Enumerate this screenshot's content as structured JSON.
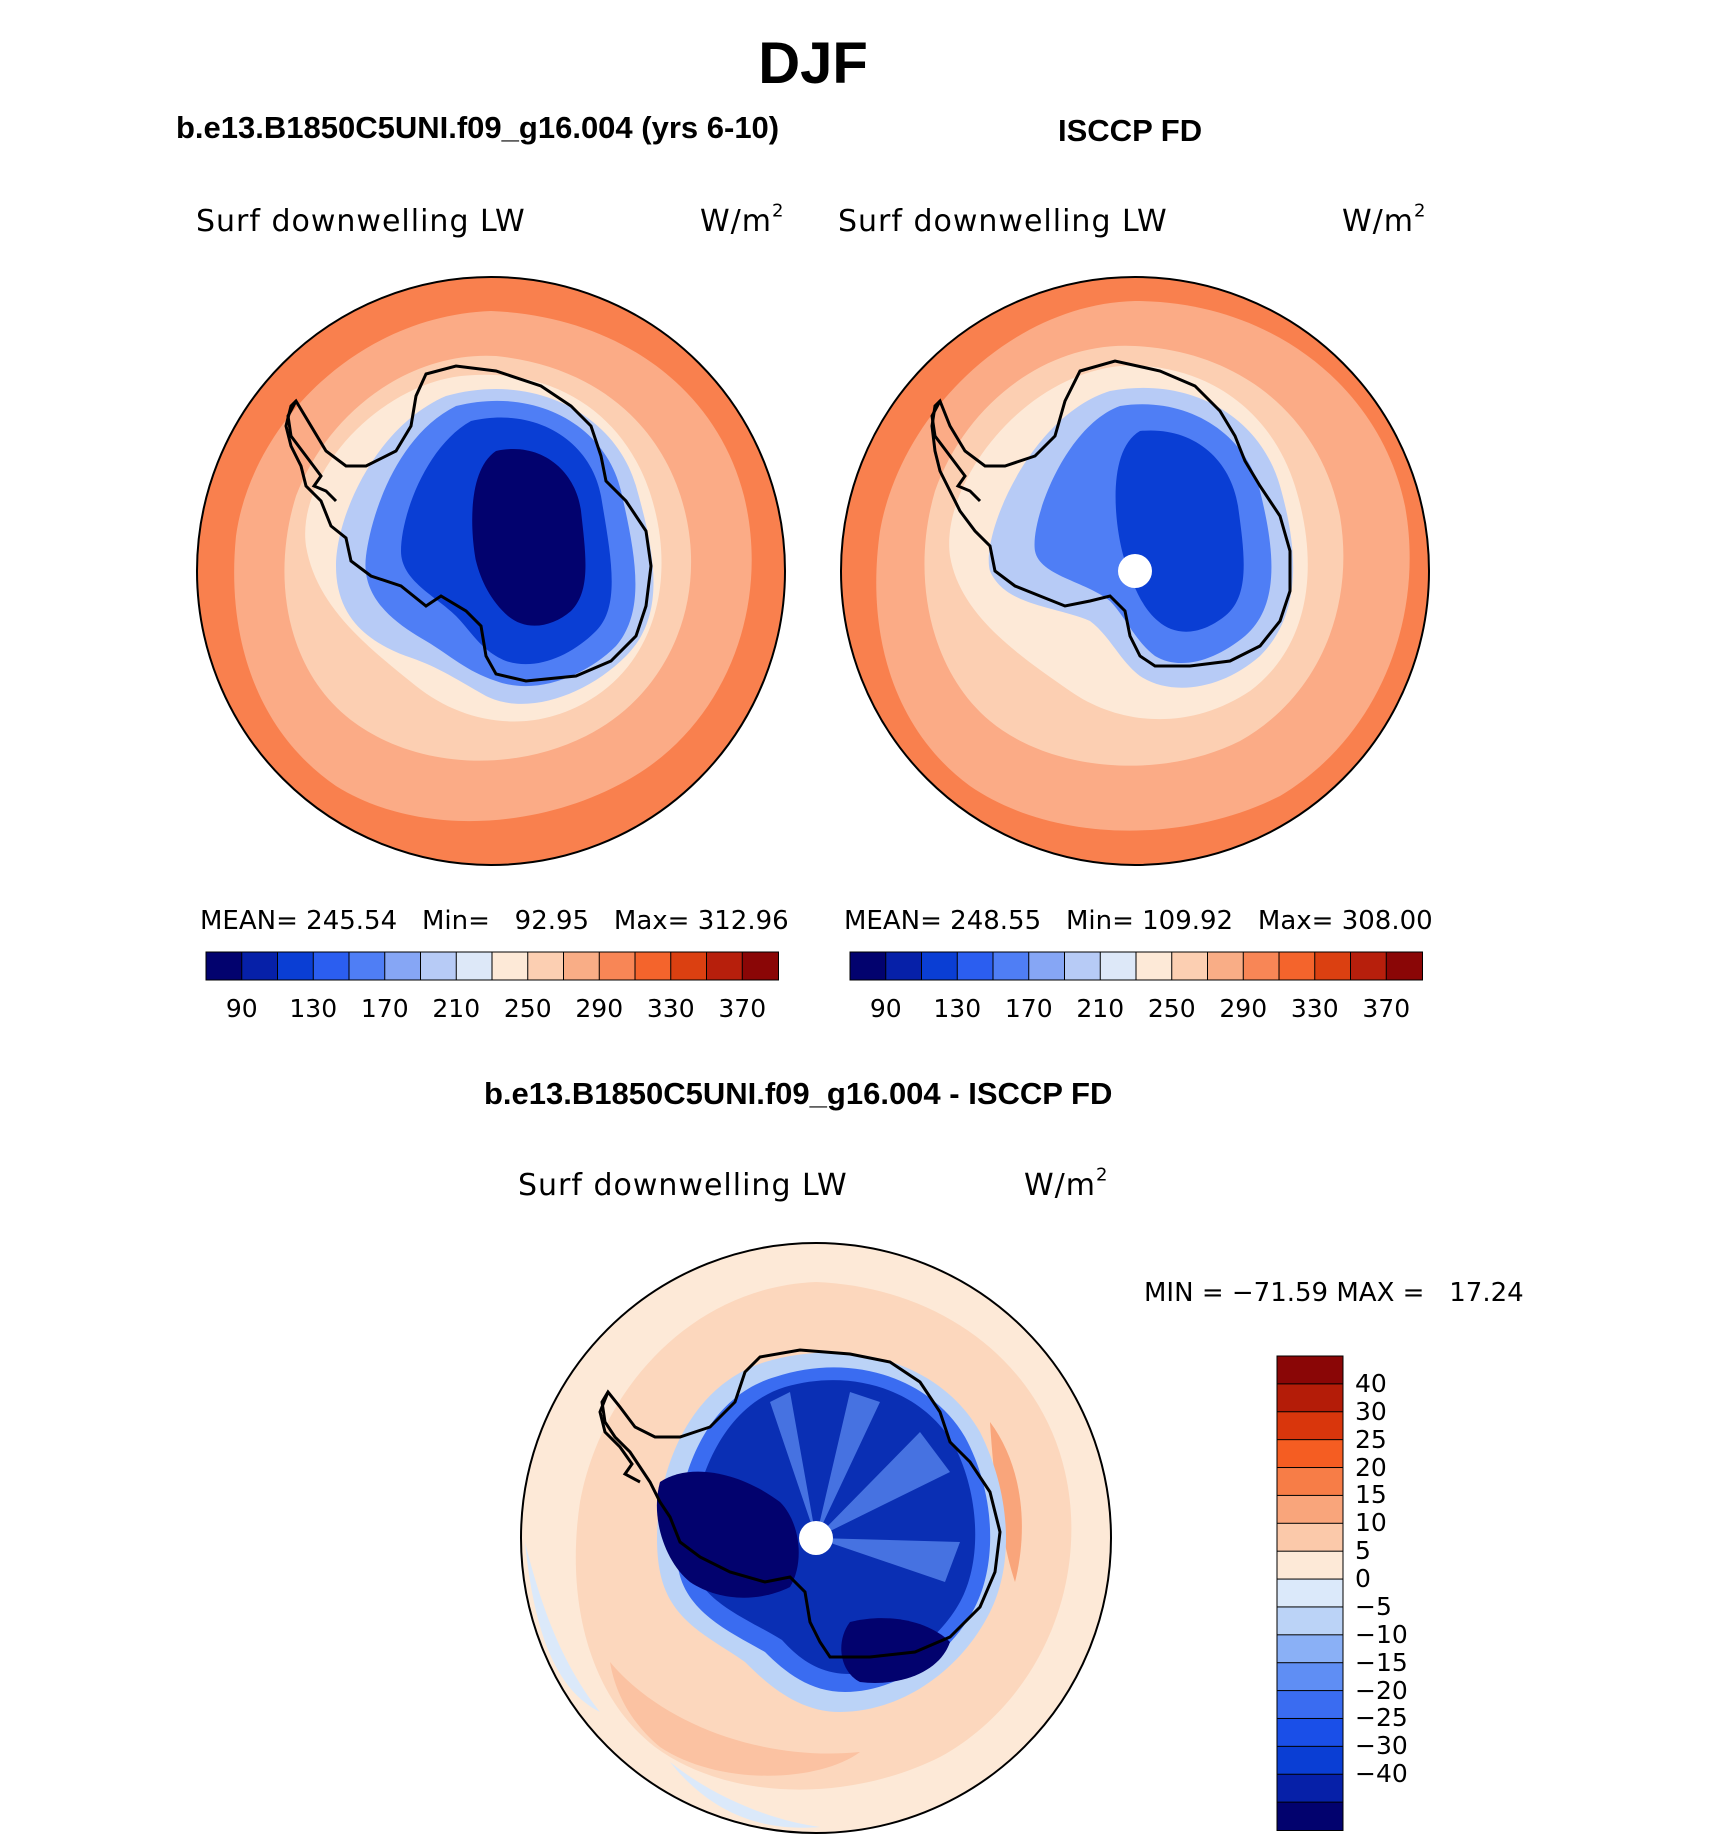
{
  "page": {
    "title": "DJF",
    "bottom_title": "b.e13.B1850C5UNI.f09_g16.004 - ISCCP FD"
  },
  "panels": {
    "model": {
      "title": "b.e13.B1850C5UNI.f09_g16.004 (yrs 6-10)",
      "variable": "Surf downwelling LW",
      "units_base": "W/m",
      "units_exp": "2",
      "mean_label": "MEAN=",
      "mean_value": "245.54",
      "min_label": "Min=",
      "min_value": "92.95",
      "max_label": "Max=",
      "max_value": "312.96"
    },
    "obs": {
      "title": "ISCCP FD",
      "variable": "Surf downwelling LW",
      "units_base": "W/m",
      "units_exp": "2",
      "mean_label": "MEAN=",
      "mean_value": "248.55",
      "min_label": "Min=",
      "min_value": "109.92",
      "max_label": "Max=",
      "max_value": "308.00"
    },
    "diff": {
      "variable": "Surf downwelling LW",
      "units_base": "W/m",
      "units_exp": "2",
      "min_label": "MIN =",
      "min_value": "−71.59",
      "max_label": "MAX =",
      "max_value": "17.24"
    }
  },
  "colorbars": {
    "abs": {
      "colors": [
        "#02026e",
        "#0620a8",
        "#0a3ed4",
        "#2b5ef0",
        "#4f7ef5",
        "#86a6f5",
        "#b7cbf6",
        "#dde8f8",
        "#fde9d7",
        "#fccfb2",
        "#f9ad86",
        "#f88656",
        "#f4642c",
        "#db4011",
        "#b71f0c",
        "#8a0606"
      ],
      "tick_labels": [
        "90",
        "130",
        "170",
        "210",
        "250",
        "290",
        "330",
        "370"
      ]
    },
    "diff": {
      "colors": [
        "#02026e",
        "#0620a8",
        "#0a3ed4",
        "#1a4fe8",
        "#3a6cf1",
        "#5f8ef4",
        "#8ab0f6",
        "#bbd3f7",
        "#dbe9fa",
        "#fde9d7",
        "#fbc9aa",
        "#f9a57b",
        "#f77d47",
        "#f55d22",
        "#d9360c",
        "#b41c08",
        "#8a0606"
      ],
      "tick_labels": [
        "40",
        "30",
        "25",
        "20",
        "15",
        "10",
        "5",
        "0",
        "−5",
        "−10",
        "−15",
        "−20",
        "−25",
        "−30",
        "−40"
      ]
    }
  },
  "map_colors": {
    "outer_ring": "#f9804e",
    "mid_ring": "#fbab86",
    "inner_ring": "#fccfb2",
    "coast_band": "#fde9d7",
    "ice_light": "#86a6f5",
    "ice_mid": "#2b5ef0",
    "ice_deep": "#0620a8",
    "diff_bg": "#fcd7bd",
    "diff_mid": "#fbc2a2",
    "diff_ice": "#0a2fb4",
    "diff_ice_deep": "#02026e",
    "diff_ice_light": "#5f8ef4",
    "coastline": "#000000",
    "pole_hole": "#ffffff"
  }
}
